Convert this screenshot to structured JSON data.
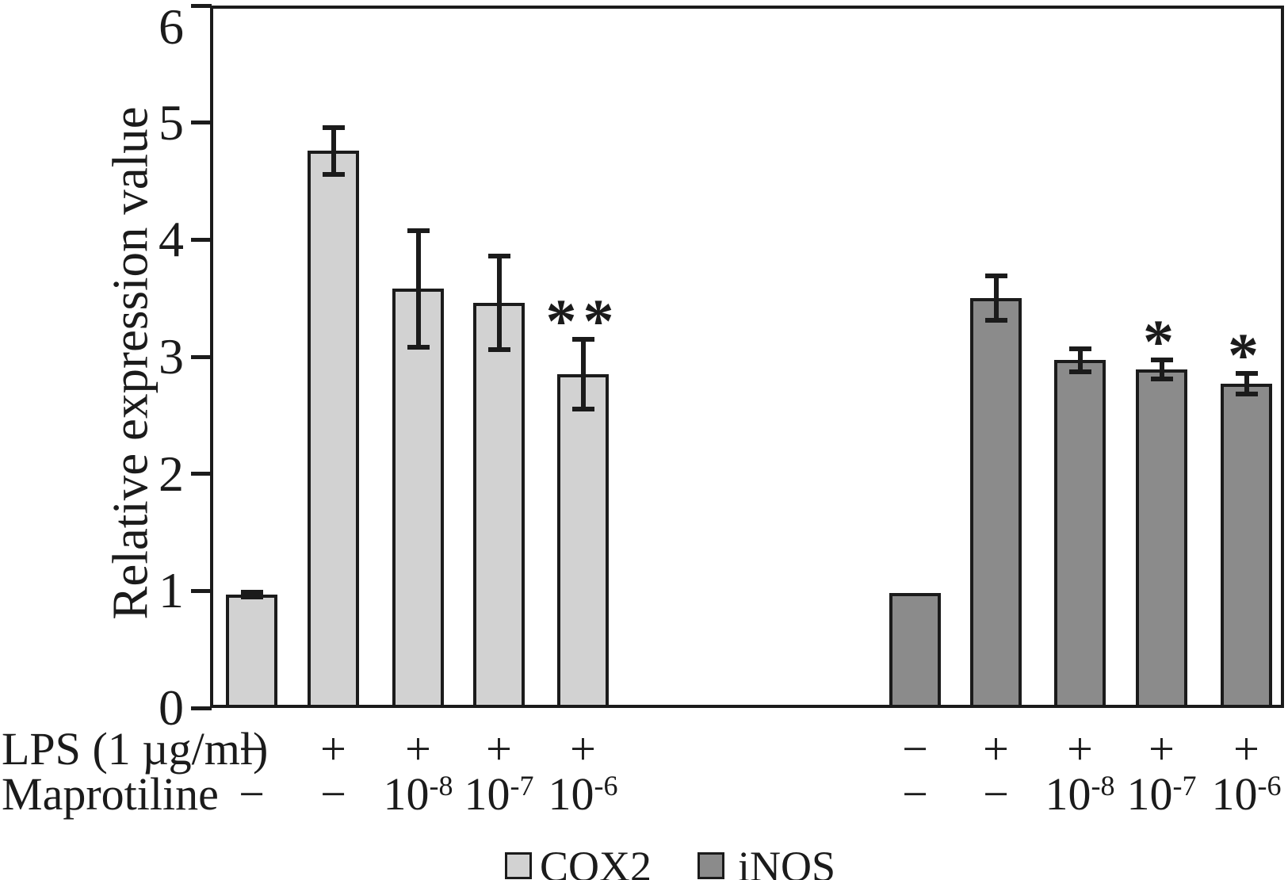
{
  "chart_data": {
    "type": "bar",
    "title": "",
    "xlabel": "",
    "ylabel": "Relative expression value",
    "ylim": [
      0,
      6
    ],
    "yticks": [
      0,
      1,
      2,
      3,
      4,
      5,
      6
    ],
    "grid": false,
    "legend_position": "bottom-center",
    "frame": "full-box",
    "error_bars": true,
    "categories_note": "two treatment groups of five bars each; conditions listed in rows below axis",
    "condition_rows": [
      {
        "label": "LPS (1 µg/ml)",
        "values_per_group": [
          "−",
          "+",
          "+",
          "+",
          "+"
        ]
      },
      {
        "label": "Maprotiline",
        "values_per_group": [
          "−",
          "−",
          "10^-8",
          "10^-7",
          "10^-6"
        ]
      }
    ],
    "series": [
      {
        "name": "COX2",
        "color": "#d2d2d2",
        "values": [
          0.97,
          4.76,
          3.58,
          3.46,
          2.85
        ],
        "errors": [
          0.02,
          0.2,
          0.5,
          0.4,
          0.3
        ],
        "significance": [
          "",
          "",
          "",
          "",
          "**"
        ]
      },
      {
        "name": "iNOS",
        "color": "#8b8b8b",
        "values": [
          0.98,
          3.5,
          2.97,
          2.89,
          2.77
        ],
        "errors": [
          0,
          0.19,
          0.1,
          0.08,
          0.09
        ],
        "significance": [
          "",
          "",
          "",
          "*",
          "*"
        ]
      }
    ],
    "line_color": "#1b1b1b"
  }
}
